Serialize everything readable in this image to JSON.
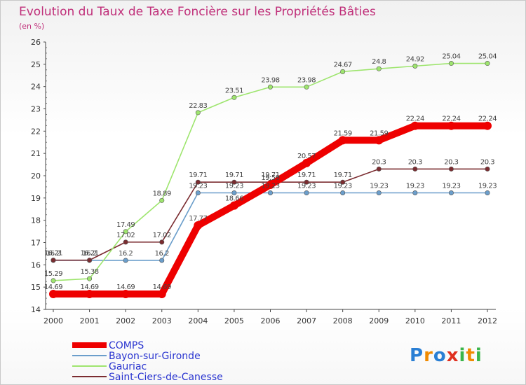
{
  "chart_data": {
    "type": "line",
    "title": "Evolution du Taux de Taxe Foncière sur les Propriétés Bâties",
    "subtitle": "(en %)",
    "xlabel": "",
    "ylabel": "",
    "x": [
      2000,
      2001,
      2002,
      2003,
      2004,
      2005,
      2006,
      2007,
      2008,
      2009,
      2010,
      2011,
      2012
    ],
    "ylim": [
      14,
      26
    ],
    "yticks": [
      14,
      15,
      16,
      17,
      18,
      19,
      20,
      21,
      22,
      23,
      24,
      25,
      26
    ],
    "grid": false,
    "legend_position": "bottom-left",
    "series": [
      {
        "name": "COMPS",
        "color": "#ee0000",
        "values": [
          14.69,
          14.69,
          14.69,
          14.69,
          17.77,
          18.66,
          19.59,
          20.57,
          21.59,
          21.59,
          22.24,
          22.24,
          22.24
        ],
        "labels": [
          "14.69",
          "14.69",
          "14.69",
          "14.69",
          "17.77",
          "18.66",
          "19.59",
          "20.57",
          "21.59",
          "21.59",
          "22.24",
          "22.24",
          "22.24"
        ]
      },
      {
        "name": "Bayon-sur-Gironde",
        "color": "#6b9ecb",
        "values": [
          16.2,
          16.2,
          16.2,
          16.2,
          19.23,
          19.23,
          19.23,
          19.23,
          19.23,
          19.23,
          19.23,
          19.23,
          19.23
        ],
        "labels": [
          "16.2",
          "16.2",
          "16.2",
          "16.2",
          "19.23",
          "19.23",
          "19.23",
          "19.23",
          "19.23",
          "19.23",
          "19.23",
          "19.23",
          "19.23"
        ]
      },
      {
        "name": "Gauriac",
        "color": "#9ee56e",
        "values": [
          15.29,
          15.38,
          17.49,
          18.89,
          22.83,
          23.51,
          23.98,
          23.98,
          24.67,
          24.8,
          24.92,
          25.04,
          25.04
        ],
        "labels": [
          "15.29",
          "15.38",
          "17.49",
          "18.89",
          "22.83",
          "23.51",
          "23.98",
          "23.98",
          "24.67",
          "24.8",
          "24.92",
          "25.04",
          "25.04"
        ]
      },
      {
        "name": "Saint-Ciers-de-Canesse",
        "color": "#7b2c30",
        "values": [
          16.21,
          16.21,
          17.02,
          17.02,
          19.71,
          19.71,
          19.71,
          19.71,
          19.71,
          20.3,
          20.3,
          20.3,
          20.3
        ],
        "labels": [
          "16.21",
          "16.21",
          "17.02",
          "17.02",
          "19.71",
          "19.71",
          "19.71",
          "19.71",
          "19.71",
          "20.3",
          "20.3",
          "20.3",
          "20.3"
        ]
      }
    ]
  },
  "legend": {
    "items": [
      "COMPS",
      "Bayon-sur-Gironde",
      "Gauriac",
      "Saint-Ciers-de-Canesse"
    ]
  },
  "brand": {
    "letters": [
      "P",
      "r",
      "o",
      "x",
      "i",
      "t",
      "i"
    ],
    "colors": [
      "#2a7fd4",
      "#f08a00",
      "#2a7fd4",
      "#e03020",
      "#3ab54a",
      "#f08a00",
      "#3ab54a"
    ]
  }
}
